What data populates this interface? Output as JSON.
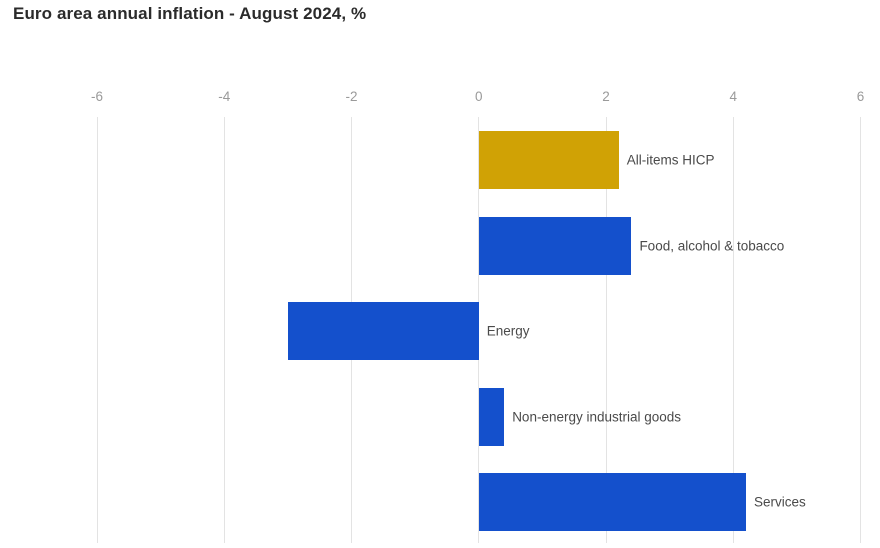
{
  "title": "Euro area annual inflation - August 2024, %",
  "colors": {
    "background": "#ffffff",
    "title_text": "#2b2b2b",
    "axis_text": "#9a9a9a",
    "label_text": "#4a4a4a",
    "gridline": "#e3e3e3",
    "highlight_bar": "#d0a205",
    "default_bar": "#1450cc"
  },
  "chart_data": {
    "type": "bar",
    "orientation": "horizontal",
    "title": "Euro area annual inflation - August 2024, %",
    "categories": [
      "All-items HICP",
      "Food, alcohol & tobacco",
      "Energy",
      "Non-energy industrial goods",
      "Services"
    ],
    "values": [
      2.2,
      2.4,
      -3.0,
      0.4,
      4.2
    ],
    "bar_colors": [
      "#d0a205",
      "#1450cc",
      "#1450cc",
      "#1450cc",
      "#1450cc"
    ],
    "xlabel": "",
    "ylabel": "",
    "xlim": [
      -6,
      6
    ],
    "x_ticks": [
      -6,
      -4,
      -2,
      0,
      2,
      4,
      6
    ],
    "x_tick_labels": [
      "-6",
      "-4",
      "-2",
      "0",
      "2",
      "4",
      "6"
    ],
    "grid": "vertical",
    "legend": "none",
    "value_label_position": "right-of-bar-end-or-zero-line"
  }
}
